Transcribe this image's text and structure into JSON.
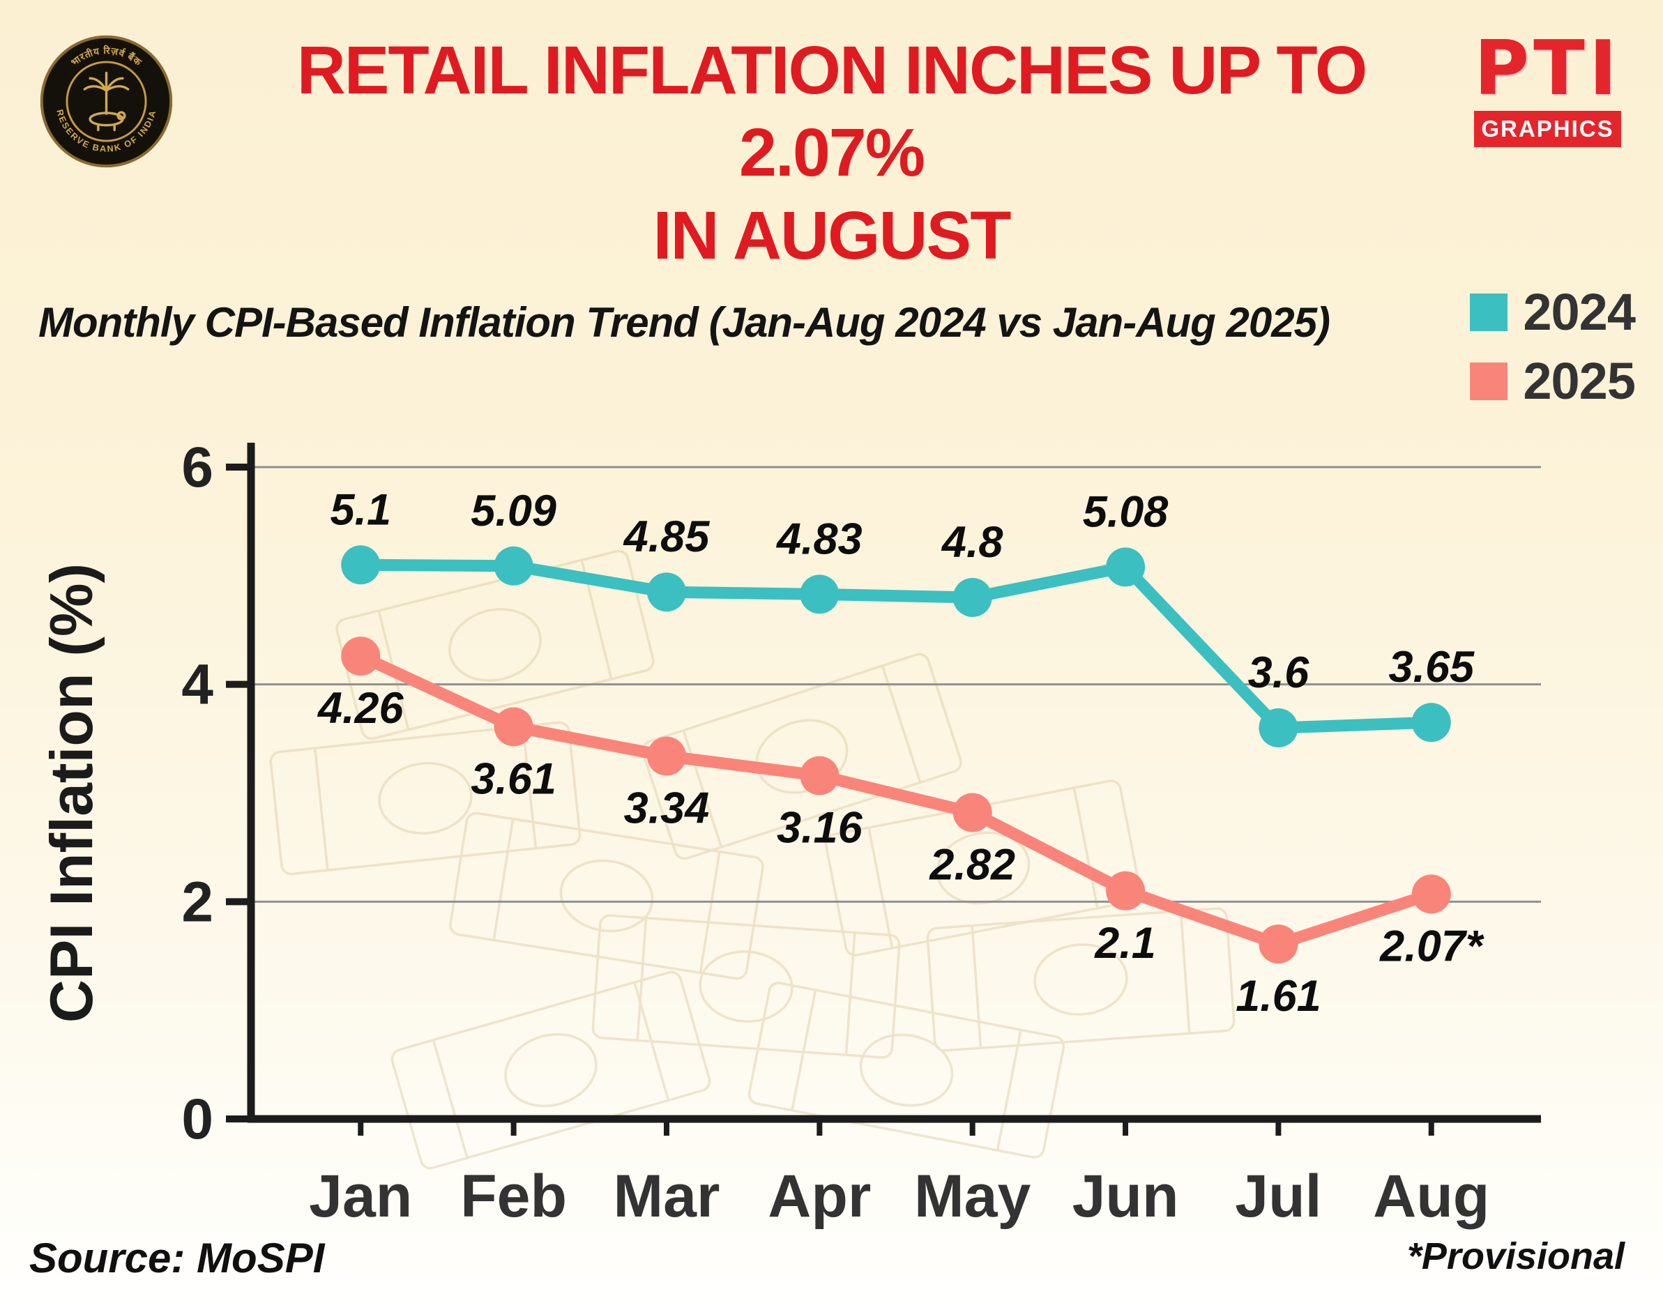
{
  "header": {
    "title_line1": "RETAIL INFLATION INCHES UP TO 2.07%",
    "title_line2": "IN AUGUST",
    "rbi_logo_text_top": "भारतीय रिज़र्व बैंक",
    "rbi_logo_text_bottom": "RESERVE BANK OF INDIA",
    "pti_letters": "PTI",
    "pti_sub": "GRAPHICS"
  },
  "subtitle": "Monthly CPI-Based Inflation Trend (Jan-Aug 2024 vs Jan-Aug 2025)",
  "legend": [
    {
      "label": "2024",
      "color": "#3cbfc0"
    },
    {
      "label": "2025",
      "color": "#f9857a"
    }
  ],
  "footer": {
    "source": "Source: MoSPI",
    "provisional": "*Provisional"
  },
  "colors": {
    "title_red": "#df1b21",
    "pti_red": "#e4262c",
    "series_2024": "#3cbfc0",
    "series_2025": "#f9857a",
    "axis": "#1c1c1c",
    "grid": "#909090",
    "background_cream": "#fbf0d2"
  },
  "chart_data": {
    "type": "line",
    "categories": [
      "Jan",
      "Feb",
      "Mar",
      "Apr",
      "May",
      "Jun",
      "Jul",
      "Aug"
    ],
    "series": [
      {
        "name": "2024",
        "color": "#3cbfc0",
        "values": [
          5.1,
          5.09,
          4.85,
          4.83,
          4.8,
          5.08,
          3.6,
          3.65
        ],
        "labels": [
          "5.1",
          "5.09",
          "4.85",
          "4.83",
          "4.8",
          "5.08",
          "3.6",
          "3.65"
        ],
        "label_position": "above"
      },
      {
        "name": "2025",
        "color": "#f9857a",
        "values": [
          4.26,
          3.61,
          3.34,
          3.16,
          2.82,
          2.1,
          1.61,
          2.07
        ],
        "labels": [
          "4.26",
          "3.61",
          "3.34",
          "3.16",
          "2.82",
          "2.1",
          "1.61",
          "2.07*"
        ],
        "label_position": "below"
      }
    ],
    "title": "Monthly CPI-Based Inflation Trend (Jan-Aug 2024 vs Jan-Aug 2025)",
    "xlabel": "",
    "ylabel": "CPI Inflation (%)",
    "ylim": [
      0,
      6
    ],
    "yticks": [
      0,
      2,
      4,
      6
    ],
    "grid": true,
    "legend_position": "top-right"
  }
}
